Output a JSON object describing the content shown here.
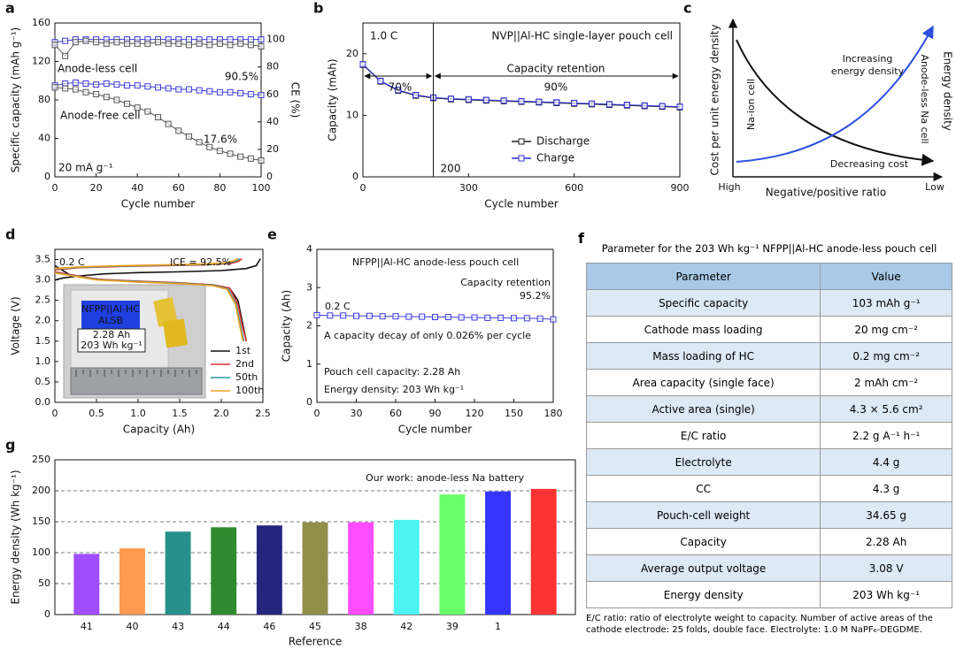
{
  "chart_data": [
    {
      "panel": "a",
      "type": "line",
      "markers": true,
      "xlabel": "Cycle number",
      "ylabel": "Specific capacity (mAh g⁻¹)",
      "y2label": "CE (%)",
      "x": [
        0,
        5,
        10,
        15,
        20,
        25,
        30,
        35,
        40,
        45,
        50,
        55,
        60,
        65,
        70,
        75,
        80,
        85,
        90,
        95,
        100
      ],
      "xlim": [
        0,
        100
      ],
      "xticks": [
        0,
        20,
        40,
        60,
        80,
        100
      ],
      "ylim": [
        0,
        160
      ],
      "yticks": [
        0,
        40,
        80,
        120,
        160
      ],
      "y2lim": [
        0,
        112
      ],
      "y2ticks": [
        0,
        20,
        40,
        60,
        80,
        100
      ],
      "series": [
        {
          "name": "Anode-less cell",
          "color": "#3b3bdc",
          "values": [
            95,
            97,
            98,
            97,
            96,
            97,
            96,
            95,
            95,
            94,
            93,
            92,
            91,
            91,
            90,
            89,
            88,
            88,
            87,
            86,
            85
          ]
        },
        {
          "name": "Anode-free cell",
          "color": "#555555",
          "values": [
            93,
            92,
            91,
            88,
            86,
            83,
            80,
            76,
            72,
            68,
            62,
            55,
            48,
            42,
            36,
            31,
            27,
            24,
            21,
            19,
            17
          ]
        },
        {
          "color": "#3b3bdc",
          "axis": "y2",
          "values": [
            98,
            99,
            100,
            100,
            100,
            100,
            100,
            100,
            100,
            100,
            100,
            100,
            100,
            100,
            100,
            100,
            100,
            100,
            100,
            100,
            100
          ]
        },
        {
          "color": "#555555",
          "axis": "y2",
          "values": [
            96,
            88,
            98,
            99,
            98,
            97,
            98,
            97,
            97,
            97,
            98,
            97,
            97,
            96,
            97,
            96,
            97,
            96,
            97,
            96,
            95
          ]
        }
      ],
      "annotations": [
        "90.5%",
        "17.6%",
        "20 mA g⁻¹"
      ]
    },
    {
      "panel": "b",
      "type": "line",
      "markers": true,
      "legend": "lower right",
      "xlabel": "Cycle number",
      "ylabel": "Capacity (mAh)",
      "x": [
        0,
        50,
        100,
        150,
        200,
        250,
        300,
        350,
        400,
        450,
        500,
        550,
        600,
        650,
        700,
        750,
        800,
        850,
        900
      ],
      "xlim": [
        0,
        900
      ],
      "xticks": [
        0,
        300,
        600,
        900
      ],
      "ylim": [
        0,
        25
      ],
      "yticks": [
        0,
        10,
        20
      ],
      "vline_x": 200,
      "series": [
        {
          "name": "Discharge",
          "color": "#222222",
          "values": [
            18.2,
            15.5,
            14,
            13.2,
            12.8,
            12.6,
            12.5,
            12.4,
            12.3,
            12.2,
            12.1,
            12,
            11.9,
            11.8,
            11.7,
            11.6,
            11.5,
            11.4,
            11.3
          ]
        },
        {
          "name": "Charge",
          "color": "#3030e0",
          "values": [
            18.3,
            15.6,
            14.1,
            13.3,
            12.9,
            12.7,
            12.6,
            12.5,
            12.4,
            12.3,
            12.2,
            12.1,
            12,
            11.9,
            11.8,
            11.7,
            11.6,
            11.5,
            11.4
          ]
        }
      ],
      "annotations": [
        "1.0 C",
        "NVP||Al-HC single-layer pouch cell",
        "70%",
        "90%",
        "Capacity retention"
      ]
    },
    {
      "panel": "c",
      "type": "schematic",
      "xlabel": "Negative/positive ratio",
      "ylabel": "Cost per unit energy density",
      "y2label": "Energy density",
      "categories": [
        "High",
        "Low"
      ],
      "annotations": [
        "Na-ion cell",
        "Increasing",
        "energy density",
        "Anode-less Na cell",
        "Decreasing cost"
      ]
    },
    {
      "panel": "d",
      "type": "line",
      "legend": "lower right",
      "xlabel": "Capacity (Ah)",
      "ylabel": "Voltage (V)",
      "xlim": [
        0,
        2.5
      ],
      "xticks": [
        0,
        0.5,
        {
          "value": 1,
          "label": "1.0"
        },
        1.5,
        {
          "value": 2,
          "label": "2.0"
        },
        2.5
      ],
      "ylim": [
        0,
        3.75
      ],
      "yticks": [
        {
          "value": 0,
          "label": "0.0"
        },
        0.5,
        {
          "value": 1,
          "label": "1.0"
        },
        1.5,
        {
          "value": 2,
          "label": "2.0"
        },
        2.5,
        {
          "value": 3,
          "label": "3.0"
        },
        3.5
      ],
      "series": [
        {
          "name": "1st",
          "color": "#111111",
          "x": [
            0,
            0.1,
            0.3,
            0.6,
            1.0,
            1.5,
            2.0,
            2.3,
            2.42,
            2.47,
            null,
            0,
            0.2,
            0.6,
            1.0,
            1.5,
            1.9,
            2.1,
            2.2,
            2.25,
            2.3
          ],
          "values": [
            3.0,
            3.05,
            3.1,
            3.15,
            3.18,
            3.2,
            3.23,
            3.28,
            3.35,
            3.52,
            null,
            3.35,
            3.1,
            3.0,
            2.95,
            2.92,
            2.88,
            2.8,
            2.5,
            2.0,
            1.5
          ]
        },
        {
          "name": "2nd",
          "color": "#e03030",
          "x": [
            0,
            0.3,
            0.8,
            1.3,
            1.8,
            2.1,
            2.2,
            2.25,
            null,
            0,
            0.5,
            1.0,
            1.5,
            1.9,
            2.1,
            2.2,
            2.25,
            2.3
          ],
          "values": [
            3.25,
            3.3,
            3.33,
            3.35,
            3.37,
            3.4,
            3.45,
            3.52,
            null,
            3.2,
            3.02,
            2.97,
            2.93,
            2.88,
            2.8,
            2.4,
            1.9,
            1.5
          ]
        },
        {
          "name": "50th",
          "color": "#2a9a9a",
          "x": [
            0,
            0.3,
            0.8,
            1.3,
            1.8,
            2.05,
            2.17,
            2.22,
            null,
            0,
            0.5,
            1.0,
            1.5,
            1.9,
            2.08,
            2.18,
            2.23,
            2.27
          ],
          "values": [
            3.27,
            3.31,
            3.34,
            3.36,
            3.38,
            3.41,
            3.46,
            3.52,
            null,
            3.18,
            3.01,
            2.96,
            2.92,
            2.87,
            2.78,
            2.4,
            1.9,
            1.5
          ]
        },
        {
          "name": "100th",
          "color": "#f0a020",
          "x": [
            0,
            0.3,
            0.8,
            1.3,
            1.8,
            2.03,
            2.15,
            2.2,
            null,
            0,
            0.5,
            1.0,
            1.5,
            1.9,
            2.07,
            2.17,
            2.22,
            2.26
          ],
          "values": [
            3.28,
            3.32,
            3.35,
            3.37,
            3.39,
            3.42,
            3.47,
            3.52,
            null,
            3.17,
            3.0,
            2.95,
            2.91,
            2.86,
            2.77,
            2.4,
            1.9,
            1.5
          ]
        }
      ],
      "annotations": [
        "0.2 C",
        "ICE = 92.5%"
      ],
      "inset": [
        "NFPP||Al-HC",
        "ALSB",
        "2.28 Ah",
        "203 Wh kg⁻¹"
      ]
    },
    {
      "panel": "e",
      "type": "line",
      "markers": true,
      "xlabel": "Cycle number",
      "ylabel": "Capacity (Ah)",
      "x": [
        0,
        10,
        20,
        30,
        40,
        50,
        60,
        70,
        80,
        90,
        100,
        110,
        120,
        130,
        140,
        150,
        160,
        170,
        180
      ],
      "xlim": [
        0,
        180
      ],
      "xticks": [
        0,
        30,
        60,
        90,
        120,
        150,
        180
      ],
      "ylim": [
        0,
        4
      ],
      "yticks": [
        0,
        1,
        2,
        3,
        4
      ],
      "series": [
        {
          "color": "#3a3ae0",
          "values": [
            2.28,
            2.27,
            2.27,
            2.26,
            2.26,
            2.25,
            2.25,
            2.24,
            2.24,
            2.23,
            2.23,
            2.22,
            2.22,
            2.21,
            2.21,
            2.2,
            2.2,
            2.19,
            2.17
          ]
        }
      ],
      "annotations": [
        "NFPP||Al-HC anode-less pouch cell",
        "0.2 C",
        "Capacity retention",
        "95.2%",
        "A capacity decay of only 0.026% per cycle",
        "Pouch cell capacity: 2.28 Ah",
        "Energy density: 203 Wh kg⁻¹"
      ]
    },
    {
      "panel": "g",
      "type": "bar",
      "grid": true,
      "xlabel": "Reference",
      "ylabel": "Energy density (Wh kg⁻¹)",
      "categories": [
        "41",
        "40",
        "43",
        "44",
        "46",
        "45",
        "38",
        "42",
        "39",
        "1",
        null
      ],
      "values": [
        98,
        107,
        134,
        141,
        144,
        149,
        149,
        153,
        194,
        199,
        203
      ],
      "colors": [
        "#a24cff",
        "#ff9a50",
        "#27908b",
        "#2f8b2f",
        "#25257e",
        "#8f8f4a",
        "#ff4dff",
        "#4df2f2",
        "#66ff66",
        "#3434ff",
        "#ff3333"
      ],
      "ylim": [
        0,
        250
      ],
      "yticks": [
        0,
        50,
        100,
        150,
        200,
        250
      ],
      "annotations": [
        "Our work: anode-less Na battery"
      ]
    }
  ],
  "table": {
    "panel": "f",
    "title": "Parameter for the 203 Wh kg⁻¹ NFPP||Al-HC anode-less pouch cell",
    "header": [
      "Parameter",
      "Value"
    ],
    "rows": [
      [
        "Specific capacity",
        "103 mAh g⁻¹"
      ],
      [
        "Cathode mass loading",
        "20 mg cm⁻²"
      ],
      [
        "Mass loading of HC",
        "0.2 mg cm⁻²"
      ],
      [
        "Area capacity (single face)",
        "2 mAh cm⁻²"
      ],
      [
        "Active area (single)",
        "4.3 × 5.6 cm²"
      ],
      [
        "E/C ratio",
        "2.2 g A⁻¹ h⁻¹"
      ],
      [
        "Electrolyte",
        "4.4 g"
      ],
      [
        "CC",
        "4.3 g"
      ],
      [
        "Pouch-cell weight",
        "34.65 g"
      ],
      [
        "Capacity",
        "2.28 Ah"
      ],
      [
        "Average output voltage",
        "3.08 V"
      ],
      [
        "Energy density",
        "203 Wh kg⁻¹"
      ]
    ],
    "note": "E/C ratio: ratio of electrolyte weight to capacity. Number of active areas of the cathode electrode: 25 folds, double face. Electrolyte: 1.0 M NaPF₆-DEGDME."
  }
}
